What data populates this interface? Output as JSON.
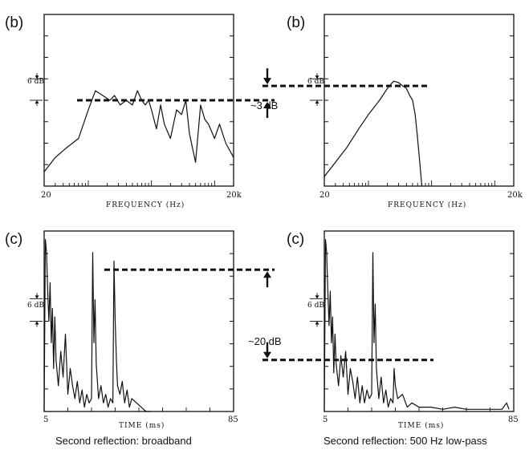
{
  "annotations": {
    "level_diff_top": "~3 dB",
    "level_diff_bottom": "~20 dB"
  },
  "captions": {
    "left": "Second reflection: broadband",
    "right": "Second reflection: 500 Hz low-pass"
  },
  "colors": {
    "ink": "#111111",
    "background": "#ffffff"
  },
  "chart_data": [
    {
      "id": "freq_broadband",
      "panel": "(b)",
      "type": "line",
      "xlabel": "FREQUENCY (Hz)",
      "ylabel": "",
      "x_ticks": [
        "20",
        "20k"
      ],
      "xscale": "log",
      "xlim": [
        20,
        20000
      ],
      "ylim": [
        -30,
        6
      ],
      "scale_bar": "6 dB",
      "reference_level_db": -12,
      "series": [
        {
          "x": [
            20,
            30,
            45,
            70,
            100,
            130,
            170,
            220,
            260,
            320,
            400,
            500,
            600,
            700,
            800,
            900,
            1000,
            1200,
            1400,
            1600,
            2000,
            2500,
            3000,
            3500,
            4000,
            5000,
            6000,
            7000,
            8000,
            10000,
            12000,
            15000,
            20000
          ],
          "y": [
            -27,
            -24,
            -22,
            -20,
            -14,
            -10,
            -11,
            -12,
            -11,
            -13,
            -12,
            -13,
            -10,
            -12,
            -13,
            -12,
            -14,
            -18,
            -13,
            -17,
            -20,
            -14,
            -15,
            -12,
            -19,
            -25,
            -13,
            -16,
            -17,
            -20,
            -17,
            -21,
            -24
          ]
        }
      ]
    },
    {
      "id": "freq_lowpass",
      "panel": "(b)",
      "type": "line",
      "xlabel": "FREQUENCY (Hz)",
      "ylabel": "",
      "x_ticks": [
        "20",
        "20k"
      ],
      "xscale": "log",
      "xlim": [
        20,
        20000
      ],
      "ylim": [
        -30,
        6
      ],
      "scale_bar": "6 dB",
      "reference_level_db": -9,
      "series": [
        {
          "x": [
            20,
            30,
            45,
            70,
            100,
            150,
            200,
            250,
            300,
            350,
            400,
            450,
            500,
            550,
            600,
            650,
            700
          ],
          "y": [
            -28,
            -25,
            -22,
            -18,
            -15,
            -12,
            -9.5,
            -8,
            -8.3,
            -9,
            -9.5,
            -11,
            -12,
            -15,
            -20,
            -25,
            -30
          ]
        }
      ]
    },
    {
      "id": "time_broadband",
      "panel": "(c)",
      "type": "line",
      "xlabel": "TIME (ms)",
      "ylabel": "",
      "x_ticks": [
        "5",
        "85"
      ],
      "xlim": [
        5,
        85
      ],
      "ylim": [
        -36,
        6
      ],
      "scale_bar": "6 dB",
      "reference_level_db": -3,
      "series": [
        {
          "x": [
            5,
            5.5,
            6,
            6.5,
            7,
            7.5,
            8,
            8.5,
            9,
            9.5,
            10,
            11,
            12,
            13,
            14,
            15,
            16,
            17,
            18,
            19,
            20,
            21,
            22,
            23,
            24,
            25,
            25.5,
            26,
            26.5,
            27,
            28,
            29,
            30,
            31,
            32,
            33,
            34,
            34.5,
            35,
            35.5,
            36,
            37,
            38,
            39,
            40,
            41,
            42,
            44,
            46,
            48,
            50
          ],
          "y": [
            -36,
            4,
            1,
            -8,
            -15,
            -6,
            -20,
            -12,
            -26,
            -14,
            -24,
            -30,
            -22,
            -28,
            -18,
            -32,
            -26,
            -30,
            -33,
            -29,
            -34,
            -31,
            -35,
            -32,
            -34,
            -33,
            1,
            -20,
            -10,
            -25,
            -33,
            -30,
            -34,
            -32,
            -35,
            -33,
            -34,
            -1,
            -15,
            -24,
            -30,
            -32,
            -29,
            -34,
            -31,
            -35,
            -33,
            -34,
            -35,
            -36,
            -36
          ]
        }
      ]
    },
    {
      "id": "time_lowpass",
      "panel": "(c)",
      "type": "line",
      "xlabel": "TIME (ms)",
      "ylabel": "",
      "x_ticks": [
        "5",
        "85"
      ],
      "xlim": [
        5,
        85
      ],
      "ylim": [
        -36,
        6
      ],
      "scale_bar": "6 dB",
      "reference_level_db": -24,
      "series": [
        {
          "x": [
            5,
            5.5,
            6,
            6.5,
            7,
            7.5,
            8,
            8.5,
            9,
            9.5,
            10,
            11,
            12,
            13,
            14,
            15,
            16,
            17,
            18,
            19,
            20,
            21,
            22,
            23,
            24,
            25,
            25.5,
            26,
            26.5,
            27,
            28,
            29,
            30,
            31,
            32,
            33,
            34,
            34.5,
            35,
            36,
            38,
            40,
            42,
            45,
            50,
            55,
            60,
            65,
            70,
            75,
            80,
            82,
            83
          ],
          "y": [
            -36,
            4,
            1,
            -8,
            -16,
            -8,
            -20,
            -14,
            -27,
            -18,
            -25,
            -30,
            -23,
            -28,
            -22,
            -32,
            -26,
            -29,
            -33,
            -28,
            -34,
            -30,
            -34,
            -31,
            -33,
            -32,
            1,
            -20,
            -11,
            -26,
            -33,
            -28,
            -34,
            -31,
            -35,
            -33,
            -34,
            -26,
            -30,
            -33,
            -32,
            -35,
            -34,
            -35,
            -35,
            -35.5,
            -35,
            -35.5,
            -35.5,
            -35.5,
            -35.5,
            -34,
            -35.5
          ]
        }
      ]
    }
  ]
}
